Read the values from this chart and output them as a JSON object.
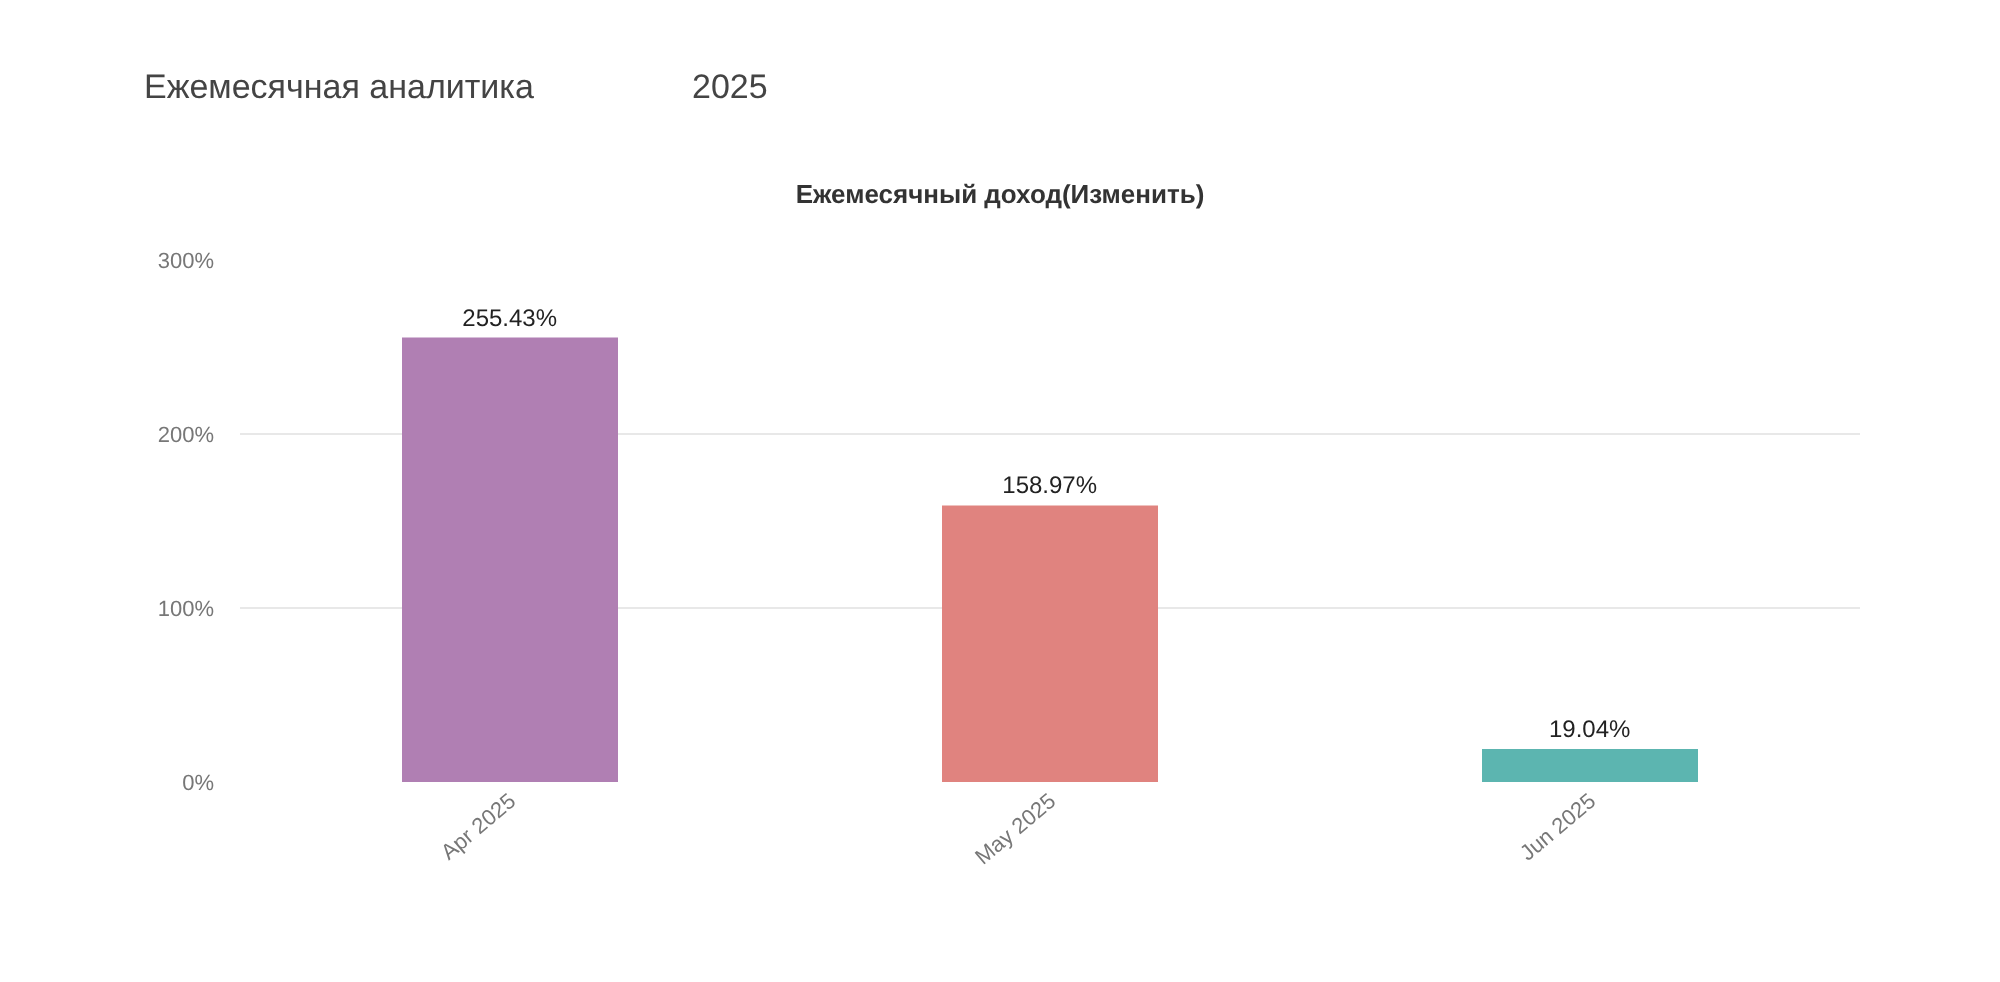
{
  "chart_data": {
    "type": "bar",
    "title": "Ежемесячный доход(Изменить)",
    "annotations": [
      "Ежемесячная аналитика",
      "2025"
    ],
    "categories": [
      "Apr 2025",
      "May 2025",
      "Jun 2025"
    ],
    "values": [
      255.43,
      158.97,
      19.04
    ],
    "colors": [
      "#b07fb3",
      "#e0837f",
      "#5cb5b0"
    ],
    "value_labels": [
      "255.43%",
      "158.97%",
      "19.04%"
    ],
    "ylim": [
      0,
      300
    ],
    "yticks": [
      {
        "value": 0,
        "label": "0%"
      },
      {
        "value": 100,
        "label": "100%"
      },
      {
        "value": 200,
        "label": "200%"
      },
      {
        "value": 300,
        "label": "300%"
      }
    ],
    "grid": "y",
    "legend": false
  }
}
